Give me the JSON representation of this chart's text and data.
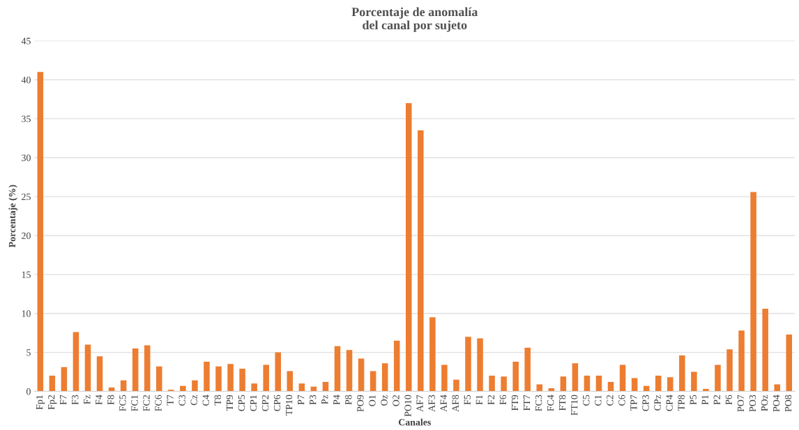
{
  "chart_data": {
    "type": "bar",
    "title": "Porcentaje de anomalía\ndel canal por sujeto",
    "xlabel": "Canales",
    "ylabel": "Porcentaje (%)",
    "categories": [
      "Fp1",
      "Fp2",
      "F7",
      "F3",
      "Fz",
      "F4",
      "F8",
      "FC5",
      "FC1",
      "FC2",
      "FC6",
      "T7",
      "C3",
      "Cz",
      "C4",
      "T8",
      "TP9",
      "CP5",
      "CP1",
      "CP2",
      "CP6",
      "TP10",
      "P7",
      "P3",
      "Pz",
      "P4",
      "P8",
      "PO9",
      "O1",
      "Oz",
      "O2",
      "PO10",
      "AF7",
      "AF3",
      "AF4",
      "AF8",
      "F5",
      "F1",
      "F2",
      "F6",
      "FT9",
      "FT7",
      "FC3",
      "FC4",
      "FT8",
      "FT10",
      "C5",
      "C1",
      "C2",
      "C6",
      "TP7",
      "CP3",
      "CPz",
      "CP4",
      "TP8",
      "P5",
      "P1",
      "P2",
      "P6",
      "PO7",
      "PO3",
      "POz",
      "PO4",
      "PO8"
    ],
    "values": [
      41,
      2.0,
      3.1,
      7.6,
      6.0,
      4.5,
      0.5,
      1.4,
      5.5,
      5.9,
      3.2,
      0.2,
      0.7,
      1.4,
      3.8,
      3.2,
      3.5,
      2.9,
      1.0,
      3.4,
      5.0,
      2.6,
      1.0,
      0.6,
      1.2,
      5.8,
      5.3,
      4.2,
      2.6,
      3.6,
      6.5,
      37,
      33.5,
      9.5,
      3.4,
      1.5,
      7.0,
      6.8,
      2.0,
      1.9,
      3.8,
      5.6,
      0.9,
      0.4,
      1.9,
      3.6,
      2.0,
      2.0,
      1.2,
      3.4,
      1.7,
      0.7,
      2.0,
      1.8,
      4.6,
      2.5,
      0.3,
      3.4,
      5.4,
      7.8,
      25.6,
      10.6,
      0.9,
      7.3
    ],
    "color": "#ed7d31",
    "ylim": [
      0,
      45
    ],
    "yticks": [
      0,
      5,
      10,
      15,
      20,
      25,
      30,
      35,
      40,
      45
    ],
    "grid": "y",
    "legend": false
  }
}
